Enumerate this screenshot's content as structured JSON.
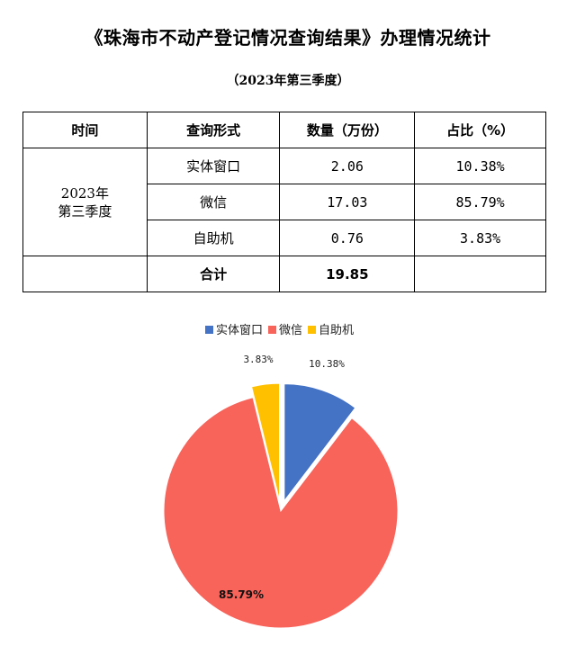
{
  "title": "《珠海市不动产登记情况查询结果》办理情况统计",
  "subtitle": "（2023年第三季度）",
  "table": {
    "headers": [
      "时间",
      "查询形式",
      "数量（万份）",
      "占比（%）"
    ],
    "period": "2023年\n第三季度",
    "rows": [
      {
        "channel": "实体窗口",
        "count": "2.06",
        "share": "10.38%"
      },
      {
        "channel": "微信",
        "count": "17.03",
        "share": "85.79%"
      },
      {
        "channel": "自助机",
        "count": "0.76",
        "share": "3.83%"
      }
    ],
    "total_label": "合计",
    "total_value": "19.85",
    "total_share": ""
  },
  "chart_data": {
    "type": "pie",
    "categories": [
      "实体窗口",
      "微信",
      "自助机"
    ],
    "values": [
      10.38,
      85.79,
      3.83
    ],
    "labels": [
      "10.38%",
      "85.79%",
      "3.83%"
    ],
    "colors": [
      "#4472C4",
      "#F8635A",
      "#FFC000"
    ],
    "legend": "top",
    "exploded": true
  }
}
